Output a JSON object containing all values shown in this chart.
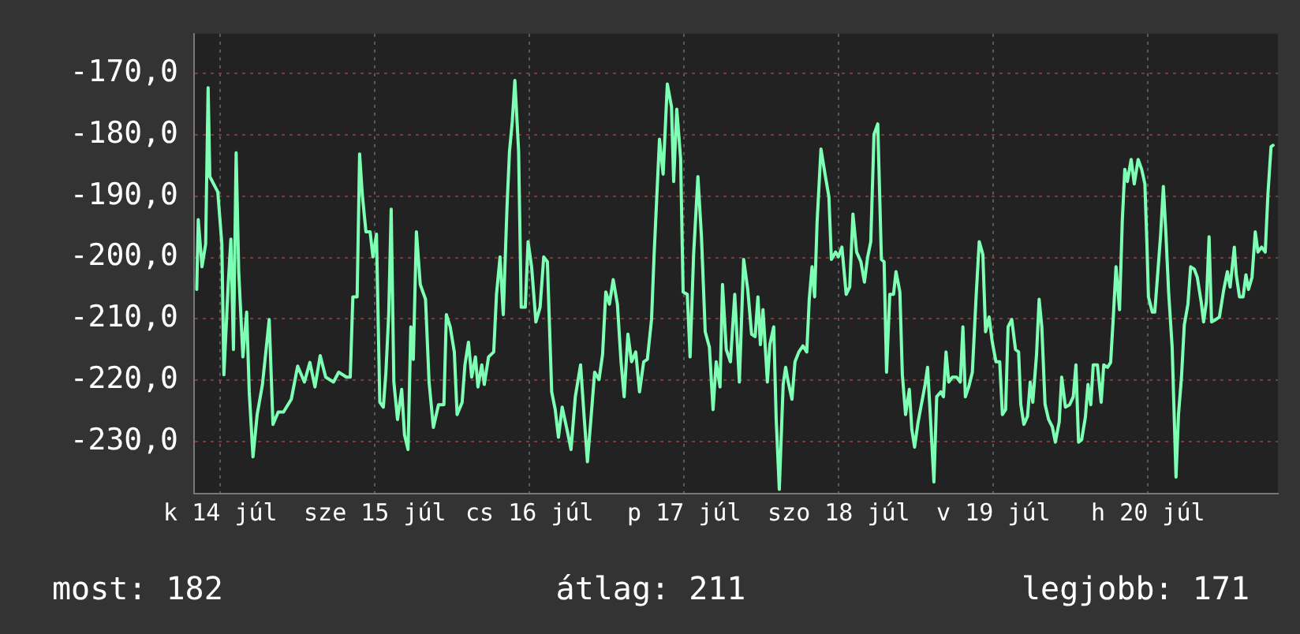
{
  "chart_data": {
    "type": "line",
    "xlim": [
      "--07-14T07:55",
      "--07-21T08:10"
    ],
    "ylim": [
      -238.5,
      -163.5
    ],
    "xticks": [
      {
        "value": "--07-14T12:00",
        "label": "k 14 júl"
      },
      {
        "value": "--07-15T12:00",
        "label": "sze 15 júl"
      },
      {
        "value": "--07-16T12:00",
        "label": "cs 16 júl"
      },
      {
        "value": "--07-17T12:00",
        "label": "p 17 júl"
      },
      {
        "value": "--07-18T12:00",
        "label": "szo 18 júl"
      },
      {
        "value": "--07-19T12:00",
        "label": "v 19 júl"
      },
      {
        "value": "--07-20T12:00",
        "label": "h 20 júl"
      }
    ],
    "yticks": [
      {
        "value": -230,
        "label": "-230,0"
      },
      {
        "value": -220,
        "label": "-220,0"
      },
      {
        "value": -210,
        "label": "-210,0"
      },
      {
        "value": -200,
        "label": "-200,0"
      },
      {
        "value": -190,
        "label": "-190,0"
      },
      {
        "value": -180,
        "label": "-180,0"
      },
      {
        "value": -170,
        "label": "-170,0"
      }
    ],
    "grid": true,
    "legend": false,
    "marker": "none",
    "line_style": "solid",
    "annotations": [
      "most: 182",
      "átlag: 211",
      "legjobb: 171"
    ],
    "series": [
      {
        "color": "#7dffb4",
        "x": [
          "--07-14T08:20",
          "--07-14T08:34",
          "--07-14T09:09",
          "--07-14T09:43",
          "--07-14T10:06",
          "--07-14T10:22",
          "--07-14T11:36",
          "--07-14T12:14",
          "--07-14T12:33",
          "--07-14T13:13",
          "--07-14T13:38",
          "--07-14T14:02",
          "--07-14T14:27",
          "--07-14T14:51",
          "--07-14T15:30",
          "--07-14T16:05",
          "--07-14T16:29",
          "--07-14T17:04",
          "--07-14T17:43",
          "--07-14T18:32",
          "--07-14T19:35",
          "--07-14T20:10",
          "--07-14T20:59",
          "--07-14T21:48",
          "--07-14T23:01",
          "--07-15T00:00",
          "--07-15T01:03",
          "--07-15T01:54",
          "--07-15T02:41",
          "--07-15T03:30",
          "--07-15T04:21",
          "--07-15T05:34",
          "--07-15T06:22",
          "--07-15T07:35",
          "--07-15T08:10",
          "--07-15T08:34",
          "--07-15T09:14",
          "--07-15T09:37",
          "--07-15T10:02",
          "--07-15T10:36",
          "--07-15T11:15",
          "--07-15T11:41",
          "--07-15T12:14",
          "--07-15T12:45",
          "--07-15T13:18",
          "--07-15T13:42",
          "--07-15T14:08",
          "--07-15T14:31",
          "--07-15T14:56",
          "--07-15T15:30",
          "--07-15T16:09",
          "--07-15T16:35",
          "--07-15T17:08",
          "--07-15T17:34",
          "--07-15T17:57",
          "--07-15T18:26",
          "--07-15T19:02",
          "--07-15T19:51",
          "--07-15T20:24",
          "--07-15T21:04",
          "--07-15T21:52",
          "--07-15T22:42",
          "--07-15T23:05",
          "--07-15T23:41",
          "--07-16T00:19",
          "--07-16T00:45",
          "--07-16T01:32",
          "--07-16T01:58",
          "--07-16T02:31",
          "--07-16T03:01",
          "--07-16T03:36",
          "--07-16T03:59",
          "--07-16T04:35",
          "--07-16T04:58",
          "--07-16T05:38",
          "--07-16T06:26",
          "--07-16T06:52",
          "--07-16T07:25",
          "--07-16T07:55",
          "--07-16T08:30",
          "--07-16T08:53",
          "--07-16T09:19",
          "--07-16T09:43",
          "--07-16T10:18",
          "--07-16T10:42",
          "--07-16T11:20",
          "--07-16T11:46",
          "--07-16T12:19",
          "--07-16T12:59",
          "--07-16T13:38",
          "--07-16T14:12",
          "--07-16T14:46",
          "--07-16T15:26",
          "--07-16T15:59",
          "--07-16T16:29",
          "--07-16T17:04",
          "--07-16T17:53",
          "--07-16T18:26",
          "--07-16T19:06",
          "--07-16T19:55",
          "--07-16T20:30",
          "--07-16T20:59",
          "--07-16T21:33",
          "--07-16T22:06",
          "--07-16T22:47",
          "--07-16T23:20",
          "--07-16T23:50",
          "--07-17T00:24",
          "--07-17T00:59",
          "--07-17T01:38",
          "--07-17T02:12",
          "--07-17T02:41",
          "--07-17T03:16",
          "--07-17T03:50",
          "--07-17T04:29",
          "--07-17T05:04",
          "--07-17T05:43",
          "--07-17T06:17",
          "--07-17T06:56",
          "--07-17T07:21",
          "--07-17T08:10",
          "--07-17T08:44",
          "--07-17T09:23",
          "--07-17T10:02",
          "--07-17T10:22",
          "--07-17T10:51",
          "--07-17T11:27",
          "--07-17T11:50",
          "--07-17T12:29",
          "--07-17T12:55",
          "--07-17T13:28",
          "--07-17T14:08",
          "--07-17T14:41",
          "--07-17T15:16",
          "--07-17T15:55",
          "--07-17T16:29",
          "--07-17T16:58",
          "--07-17T17:34",
          "--07-17T17:57",
          "--07-17T18:32",
          "--07-17T19:11",
          "--07-17T19:51",
          "--07-17T20:34",
          "--07-17T21:14",
          "--07-17T21:52",
          "--07-17T22:28",
          "--07-17T23:01",
          "--07-17T23:27",
          "--07-17T23:50",
          "--07-18T00:14",
          "--07-18T00:55",
          "--07-18T01:18",
          "--07-18T01:54",
          "--07-18T02:17",
          "--07-18T02:46",
          "--07-18T03:22",
          "--07-18T03:45",
          "--07-18T04:09",
          "--07-18T04:44",
          "--07-18T05:12",
          "--07-18T05:48",
          "--07-18T06:26",
          "--07-18T07:02",
          "--07-18T07:25",
          "--07-18T07:51",
          "--07-18T08:15",
          "--07-18T08:38",
          "--07-18T09:14",
          "--07-18T09:52",
          "--07-18T10:28",
          "--07-18T10:51",
          "--07-18T11:31",
          "--07-18T11:56",
          "--07-18T12:29",
          "--07-18T13:09",
          "--07-18T13:42",
          "--07-18T14:12",
          "--07-18T14:46",
          "--07-18T15:26",
          "--07-18T15:59",
          "--07-18T16:29",
          "--07-18T16:58",
          "--07-18T17:28",
          "--07-18T18:03",
          "--07-18T18:37",
          "--07-18T19:02",
          "--07-18T19:25",
          "--07-18T19:55",
          "--07-18T20:30",
          "--07-18T20:53",
          "--07-18T21:29",
          "--07-18T21:52",
          "--07-18T22:22",
          "--07-18T22:57",
          "--07-18T23:20",
          "--07-18T23:46",
          "--07-19T00:19",
          "--07-19T00:49",
          "--07-19T01:24",
          "--07-19T01:47",
          "--07-19T02:12",
          "--07-19T02:46",
          "--07-19T03:12",
          "--07-19T03:50",
          "--07-19T04:15",
          "--07-19T04:39",
          "--07-19T05:04",
          "--07-19T05:38",
          "--07-19T06:17",
          "--07-19T06:52",
          "--07-19T07:16",
          "--07-19T07:39",
          "--07-19T08:10",
          "--07-19T08:44",
          "--07-19T09:19",
          "--07-19T09:48",
          "--07-19T10:22",
          "--07-19T10:47",
          "--07-19T11:20",
          "--07-19T11:50",
          "--07-19T12:24",
          "--07-19T12:59",
          "--07-19T13:24",
          "--07-19T13:54",
          "--07-19T14:17",
          "--07-19T14:51",
          "--07-19T15:26",
          "--07-19T15:55",
          "--07-19T16:15",
          "--07-19T16:44",
          "--07-19T17:18",
          "--07-19T17:43",
          "--07-19T18:07",
          "--07-19T18:42",
          "--07-19T19:06",
          "--07-19T19:31",
          "--07-19T20:01",
          "--07-19T20:34",
          "--07-19T21:09",
          "--07-19T21:37",
          "--07-19T22:13",
          "--07-19T22:36",
          "--07-19T23:11",
          "--07-19T23:50",
          "--07-20T00:24",
          "--07-20T00:49",
          "--07-20T01:13",
          "--07-20T01:42",
          "--07-20T02:17",
          "--07-20T02:41",
          "--07-20T03:07",
          "--07-20T03:30",
          "--07-20T04:09",
          "--07-20T04:44",
          "--07-20T05:08",
          "--07-20T05:43",
          "--07-20T06:12",
          "--07-20T06:37",
          "--07-20T07:02",
          "--07-20T07:35",
          "--07-20T08:01",
          "--07-20T08:24",
          "--07-20T08:48",
          "--07-20T09:23",
          "--07-20T09:52",
          "--07-20T10:28",
          "--07-20T11:01",
          "--07-20T11:31",
          "--07-20T11:50",
          "--07-20T12:04",
          "--07-20T12:40",
          "--07-20T13:03",
          "--07-20T13:32",
          "--07-20T13:58",
          "--07-20T14:23",
          "--07-20T14:46",
          "--07-20T15:12",
          "--07-20T15:45",
          "--07-20T16:21",
          "--07-20T16:44",
          "--07-20T17:12",
          "--07-20T17:38",
          "--07-20T18:12",
          "--07-20T18:37",
          "--07-20T19:11",
          "--07-20T19:39",
          "--07-20T20:15",
          "--07-20T20:38",
          "--07-20T21:04",
          "--07-20T21:29",
          "--07-20T21:52",
          "--07-20T22:32",
          "--07-20T23:05",
          "--07-20T23:46",
          "--07-21T00:19",
          "--07-21T00:45",
          "--07-21T01:24",
          "--07-21T01:42",
          "--07-21T02:12",
          "--07-21T02:46",
          "--07-21T03:12",
          "--07-21T03:36",
          "--07-21T04:09",
          "--07-21T04:39",
          "--07-21T05:04",
          "--07-21T05:38",
          "--07-21T06:12",
          "--07-21T06:37",
          "--07-21T07:06",
          "--07-21T07:25"
        ],
        "values": [
          -205.2,
          -193.8,
          -201.5,
          -197.8,
          -172.3,
          -186.8,
          -189.3,
          -197.8,
          -219.1,
          -204.4,
          -197,
          -215,
          -182.9,
          -202.3,
          -216.2,
          -208.9,
          -221.9,
          -232.5,
          -225.6,
          -220.7,
          -210.1,
          -227.2,
          -225.2,
          -225.2,
          -223.1,
          -217.7,
          -220.3,
          -217.1,
          -221.1,
          -216,
          -219.5,
          -220.3,
          -218.7,
          -219.5,
          -219.5,
          -206.4,
          -206.4,
          -183.1,
          -189.7,
          -195.8,
          -195.8,
          -199.9,
          -196.2,
          -223.6,
          -224.4,
          -218.7,
          -209.3,
          -192.1,
          -220.3,
          -226.4,
          -221.5,
          -228.9,
          -231.3,
          -211.3,
          -216.6,
          -195.8,
          -204.4,
          -206.8,
          -220.3,
          -227.7,
          -224,
          -224,
          -209.3,
          -211.3,
          -215.4,
          -225.6,
          -223.6,
          -217.5,
          -213.8,
          -219.5,
          -216.2,
          -221.1,
          -217.5,
          -220.7,
          -216.2,
          -215.4,
          -206,
          -199.9,
          -209.3,
          -191.7,
          -182.7,
          -177.8,
          -171.1,
          -182.7,
          -208.1,
          -208.1,
          -197.4,
          -201.5,
          -210.5,
          -208.1,
          -199.9,
          -200.7,
          -221.9,
          -224.8,
          -229.3,
          -224.4,
          -228.4,
          -231.3,
          -222.7,
          -217.5,
          -226.4,
          -233.3,
          -226,
          -218.7,
          -219.9,
          -215.8,
          -205.6,
          -207.6,
          -203.6,
          -207.6,
          -217,
          -222.7,
          -212.5,
          -217,
          -215.4,
          -221.9,
          -217,
          -216.6,
          -210.1,
          -199.1,
          -180.7,
          -186.4,
          -171.7,
          -175.4,
          -187.6,
          -175.8,
          -183.9,
          -205.6,
          -206,
          -216.2,
          -199.5,
          -186.8,
          -196.6,
          -212.1,
          -214.6,
          -224.8,
          -217,
          -221.1,
          -204.4,
          -215,
          -217,
          -206,
          -220.3,
          -200.3,
          -205.2,
          -212.5,
          -212.9,
          -206.4,
          -214.2,
          -208.5,
          -220.3,
          -214.2,
          -211.3,
          -226.4,
          -237.8,
          -220.7,
          -217.9,
          -220.3,
          -223.1,
          -217,
          -215.4,
          -214.4,
          -215.4,
          -206.8,
          -201.5,
          -206.4,
          -194.2,
          -182.3,
          -186.4,
          -190.1,
          -200.3,
          -199.1,
          -199.9,
          -198.3,
          -206,
          -204.8,
          -192.9,
          -199.1,
          -200.7,
          -204,
          -199.9,
          -197.4,
          -179.9,
          -178.2,
          -200.3,
          -200.7,
          -218.7,
          -206,
          -206,
          -202.3,
          -205.6,
          -219.1,
          -225.6,
          -221.5,
          -228,
          -230.9,
          -226.8,
          -224,
          -220.7,
          -217.9,
          -225.6,
          -236.6,
          -222.7,
          -221.9,
          -222.7,
          -215.4,
          -220.3,
          -219.5,
          -219.5,
          -220.3,
          -211.3,
          -222.7,
          -221.1,
          -218.7,
          -206.4,
          -197.4,
          -199.5,
          -212.1,
          -209.7,
          -213.8,
          -217,
          -217,
          -225.6,
          -224.8,
          -211.3,
          -210.1,
          -215,
          -215.4,
          -223.9,
          -227.2,
          -225.9,
          -220.3,
          -223.6,
          -215.8,
          -206.8,
          -211.3,
          -223.9,
          -226.4,
          -227.6,
          -230.1,
          -226.8,
          -219.5,
          -224.4,
          -224,
          -222.7,
          -217.5,
          -230.1,
          -229.7,
          -226,
          -220.7,
          -224,
          -217.5,
          -217.5,
          -223.6,
          -217.5,
          -217.9,
          -217.1,
          -209.7,
          -201.5,
          -208.5,
          -193.8,
          -185.6,
          -187.6,
          -184,
          -188,
          -184,
          -185.6,
          -188,
          -197.8,
          -206.4,
          -208.9,
          -208.9,
          -202.3,
          -196.2,
          -188.4,
          -195.8,
          -205.6,
          -214.6,
          -235.8,
          -225.6,
          -219.5,
          -211,
          -207.6,
          -201.5,
          -201.9,
          -203.2,
          -207.2,
          -210.5,
          -207.2,
          -196.6,
          -210.5,
          -210.1,
          -209.7,
          -205.2,
          -202.3,
          -204.8,
          -198.3,
          -202.8,
          -206.4,
          -206.4,
          -202.8,
          -205.2,
          -203.2,
          -195.8,
          -199.1,
          -198.3,
          -199.1,
          -189.7,
          -181.9,
          -181.7
        ]
      }
    ]
  }
}
